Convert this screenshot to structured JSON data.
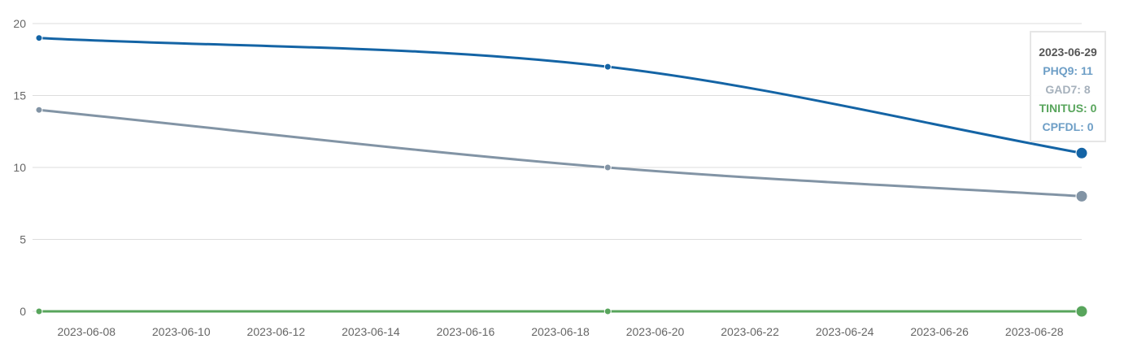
{
  "chart_data": {
    "type": "line",
    "title": "",
    "xlabel": "",
    "ylabel": "",
    "ylim": [
      0,
      20
    ],
    "yticks": [
      0,
      5,
      10,
      15,
      20
    ],
    "xlim": [
      "2023-06-07",
      "2023-06-29"
    ],
    "xticks": [
      "2023-06-08",
      "2023-06-10",
      "2023-06-12",
      "2023-06-14",
      "2023-06-16",
      "2023-06-18",
      "2023-06-20",
      "2023-06-22",
      "2023-06-24",
      "2023-06-26",
      "2023-06-28"
    ],
    "grid": true,
    "legend": "none",
    "x": [
      "2023-06-07",
      "2023-06-19",
      "2023-06-29"
    ],
    "series": [
      {
        "name": "PHQ9",
        "values": [
          19,
          17,
          11
        ],
        "color": "#1464a5",
        "tooltip_color": "#6d9ec6"
      },
      {
        "name": "GAD7",
        "values": [
          14,
          10,
          8
        ],
        "color": "#8294a5",
        "tooltip_color": "#a6b1bc"
      },
      {
        "name": "TINITUS",
        "values": [
          0,
          0,
          0
        ],
        "color": "#58a55c",
        "tooltip_color": "#58a55c"
      },
      {
        "name": "CPFDL",
        "values": [
          0,
          0,
          0
        ],
        "color": "#1464a5",
        "tooltip_color": "#6d9ec6"
      }
    ]
  },
  "tooltip": {
    "date": "2023-06-29",
    "rows": [
      {
        "label": "PHQ9",
        "sep": ": ",
        "value": "11"
      },
      {
        "label": "GAD7",
        "sep": ": ",
        "value": "8"
      },
      {
        "label": "TINITUS",
        "sep": ": ",
        "value": "0"
      },
      {
        "label": "CPFDL",
        "sep": ": ",
        "value": "0"
      }
    ]
  }
}
